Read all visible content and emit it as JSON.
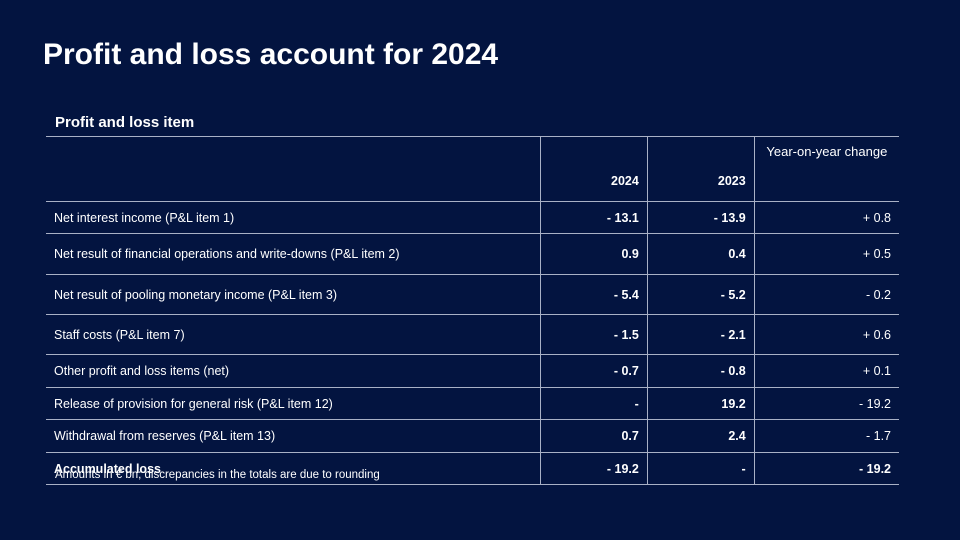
{
  "slide": {
    "title": "Profit and loss account for 2024",
    "section_label": "Profit and loss item",
    "footnote": "Amounts in € bn; discrepancies in the totals are due to rounding"
  },
  "table": {
    "headers": {
      "item": "",
      "y2024": "2024",
      "y2023": "2023",
      "change": "Year-on-year change"
    },
    "rows": [
      {
        "item": "Net interest income (P&L item 1)",
        "y2024": "- 13.1",
        "y2023": "- 13.9",
        "change": "+ 0.8"
      },
      {
        "item": "Net result of financial operations and write-downs (P&L item 2)",
        "y2024": "0.9",
        "y2023": "0.4",
        "change": "+ 0.5"
      },
      {
        "item": "Net result of pooling monetary income (P&L item 3)",
        "y2024": "- 5.4",
        "y2023": "- 5.2",
        "change": "- 0.2"
      },
      {
        "item": "Staff costs (P&L item 7)",
        "y2024": "- 1.5",
        "y2023": "- 2.1",
        "change": "+ 0.6"
      },
      {
        "item": "Other profit and loss items (net)",
        "y2024": "- 0.7",
        "y2023": "- 0.8",
        "change": "+ 0.1"
      },
      {
        "item": "Release of provision for general risk (P&L item 12)",
        "y2024": "-",
        "y2023": "19.2",
        "change": "- 19.2"
      },
      {
        "item": "Withdrawal from reserves (P&L item 13)",
        "y2024": "0.7",
        "y2023": "2.4",
        "change": "- 1.7"
      },
      {
        "item": "Accumulated loss",
        "y2024": "- 19.2",
        "y2023": "-",
        "change": "- 19.2"
      }
    ]
  }
}
